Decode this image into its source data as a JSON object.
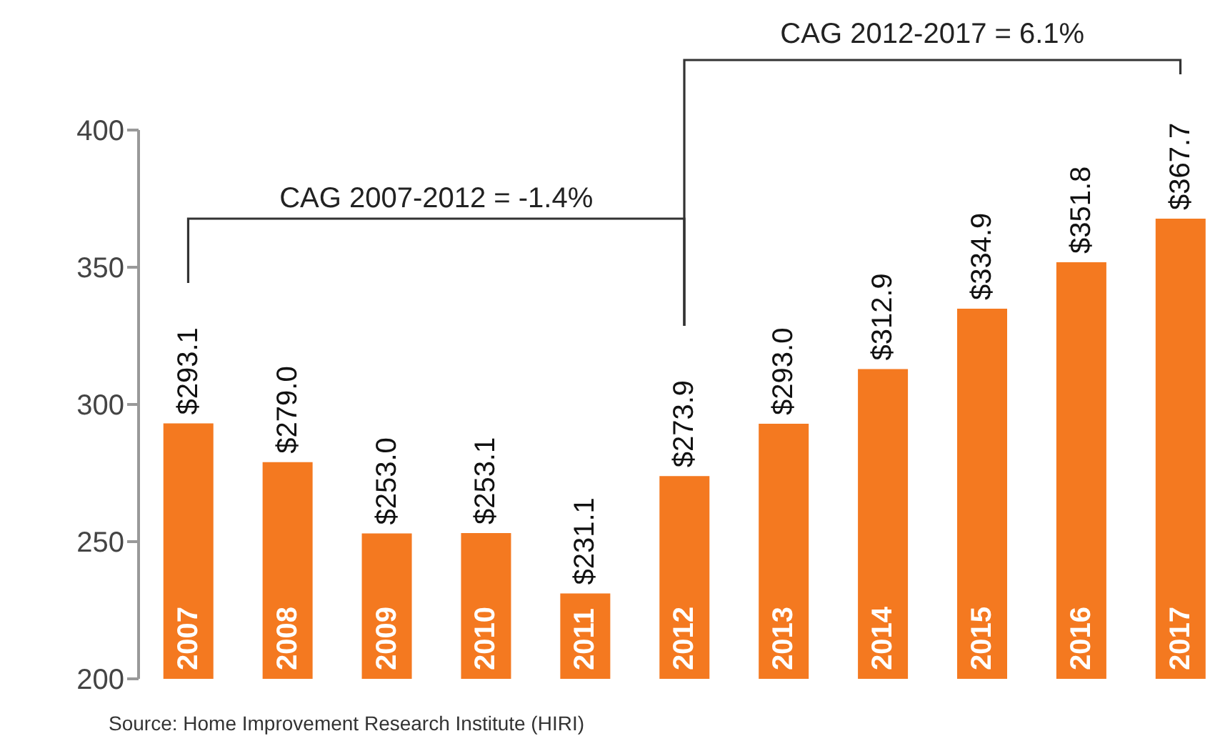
{
  "chart_data": {
    "type": "bar",
    "categories": [
      "2007",
      "2008",
      "2009",
      "2010",
      "2011",
      "2012",
      "2013",
      "2014",
      "2015",
      "2016",
      "2017"
    ],
    "values": [
      293.1,
      279.0,
      253.0,
      253.1,
      231.1,
      273.9,
      293.0,
      312.9,
      334.9,
      351.8,
      367.7
    ],
    "value_labels": [
      "$293.1",
      "$279.0",
      "$253.0",
      "$253.1",
      "$231.1",
      "$273.9",
      "$293.0",
      "$312.9",
      "$334.9",
      "$351.8",
      "$367.7"
    ],
    "color": "#f47920",
    "ylim": [
      200,
      400
    ],
    "yticks": [
      200,
      250,
      300,
      350,
      400
    ],
    "grid": false,
    "legend": false,
    "annotations": [
      "CAG 2007-2012 = -1.4%",
      "CAG 2012-2017 = 6.1%",
      "Source: Home Improvement Research Institute (HIRI)"
    ]
  }
}
